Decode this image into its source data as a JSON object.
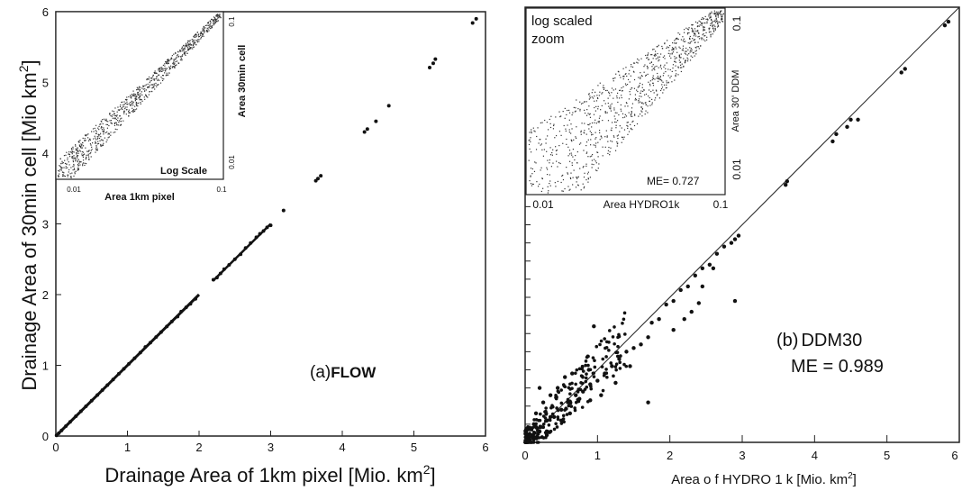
{
  "chart_data": [
    {
      "type": "scatter",
      "xlabel": "Drainage Area of 1km pixel [Mio. km",
      "xlabel_sup": "2",
      "xlabel_end": "]",
      "ylabel": "Drainage Area of 30min cell [Mio km",
      "ylabel_sup": "2",
      "ylabel_end": "]",
      "xlim": [
        0,
        6
      ],
      "ylim": [
        0,
        6
      ],
      "xticks": [
        "0",
        "1",
        "2",
        "3",
        "4",
        "5",
        "6"
      ],
      "yticks": [
        "0",
        "1",
        "2",
        "3",
        "4",
        "5",
        "6"
      ],
      "panel_label": "(a)",
      "panel_name": "FLOW",
      "points": [
        [
          5.87,
          5.9
        ],
        [
          5.82,
          5.84
        ],
        [
          5.3,
          5.33
        ],
        [
          5.27,
          5.27
        ],
        [
          5.22,
          5.21
        ],
        [
          4.65,
          4.67
        ],
        [
          4.47,
          4.45
        ],
        [
          4.35,
          4.34
        ],
        [
          4.31,
          4.3
        ],
        [
          3.7,
          3.68
        ],
        [
          3.66,
          3.64
        ],
        [
          3.63,
          3.61
        ],
        [
          3.18,
          3.19
        ],
        [
          3.0,
          2.98
        ],
        [
          2.95,
          2.95
        ],
        [
          2.9,
          2.9
        ],
        [
          2.85,
          2.86
        ],
        [
          2.8,
          2.81
        ],
        [
          2.72,
          2.73
        ],
        [
          2.65,
          2.66
        ],
        [
          2.58,
          2.57
        ],
        [
          2.5,
          2.5
        ],
        [
          2.42,
          2.42
        ],
        [
          2.35,
          2.36
        ],
        [
          2.3,
          2.3
        ],
        [
          2.25,
          2.24
        ],
        [
          2.2,
          2.21
        ],
        [
          1.95,
          1.94
        ],
        [
          1.88,
          1.87
        ],
        [
          1.82,
          1.82
        ],
        [
          1.75,
          1.76
        ],
        [
          1.7,
          1.69
        ],
        [
          1.62,
          1.62
        ],
        [
          1.55,
          1.55
        ],
        [
          1.47,
          1.47
        ],
        [
          1.4,
          1.4
        ],
        [
          1.32,
          1.32
        ],
        [
          1.25,
          1.26
        ],
        [
          1.18,
          1.18
        ],
        [
          1.1,
          1.1
        ],
        [
          1.02,
          1.02
        ],
        [
          0.95,
          0.95
        ],
        [
          0.88,
          0.88
        ],
        [
          0.8,
          0.8
        ],
        [
          0.72,
          0.72
        ],
        [
          0.65,
          0.65
        ],
        [
          0.58,
          0.58
        ],
        [
          0.5,
          0.5
        ],
        [
          0.42,
          0.42
        ],
        [
          0.35,
          0.35
        ],
        [
          0.28,
          0.28
        ],
        [
          0.2,
          0.2
        ],
        [
          0.14,
          0.14
        ],
        [
          0.08,
          0.08
        ],
        [
          0.04,
          0.04
        ],
        [
          0.01,
          0.01
        ]
      ],
      "inset": {
        "xlabel": "Area 1km pixel",
        "ylabel": "Area 30min cell",
        "label": "Log Scale",
        "xticks": [
          "0.01",
          "0.1"
        ],
        "yticks": [
          "0.01",
          "0.1"
        ],
        "scale": "log"
      }
    },
    {
      "type": "scatter",
      "xlabel": "Area  o f   HYDRO  1 k     [Mio. km",
      "xlabel_sup": "2",
      "xlabel_end": "]",
      "xlim": [
        0,
        6
      ],
      "ylim": [
        0,
        6
      ],
      "xticks": [
        "0",
        "1",
        "2",
        "3",
        "4",
        "5",
        "6"
      ],
      "panel_label": "(b)",
      "panel_name": "DDM30",
      "metric": "ME =  0.989",
      "points": [
        [
          5.85,
          5.8
        ],
        [
          5.8,
          5.75
        ],
        [
          5.25,
          5.15
        ],
        [
          5.2,
          5.1
        ],
        [
          4.5,
          4.45
        ],
        [
          4.45,
          4.35
        ],
        [
          4.6,
          4.45
        ],
        [
          4.3,
          4.25
        ],
        [
          4.25,
          4.15
        ],
        [
          3.62,
          3.6
        ],
        [
          3.6,
          3.55
        ],
        [
          2.95,
          2.85
        ],
        [
          2.9,
          2.8
        ],
        [
          2.85,
          2.75
        ],
        [
          2.75,
          2.7
        ],
        [
          2.65,
          2.6
        ],
        [
          2.55,
          2.45
        ],
        [
          2.45,
          2.4
        ],
        [
          2.35,
          2.3
        ],
        [
          2.25,
          2.15
        ],
        [
          2.15,
          2.1
        ],
        [
          2.05,
          1.95
        ],
        [
          1.95,
          1.9
        ],
        [
          1.85,
          1.7
        ],
        [
          1.75,
          1.65
        ],
        [
          1.7,
          1.45
        ],
        [
          1.6,
          1.35
        ],
        [
          1.5,
          1.3
        ],
        [
          1.4,
          1.25
        ],
        [
          1.3,
          1.15
        ],
        [
          1.2,
          1.05
        ],
        [
          1.1,
          0.95
        ],
        [
          1.0,
          0.85
        ],
        [
          0.9,
          0.8
        ],
        [
          0.8,
          0.7
        ],
        [
          0.7,
          0.65
        ],
        [
          0.6,
          0.55
        ],
        [
          0.5,
          0.45
        ],
        [
          0.4,
          0.35
        ],
        [
          0.3,
          0.3
        ],
        [
          0.2,
          0.15
        ],
        [
          0.1,
          0.1
        ],
        [
          0.05,
          0.05
        ],
        [
          0.88,
          1.0
        ],
        [
          0.75,
          0.6
        ],
        [
          0.9,
          0.58
        ],
        [
          1.05,
          0.65
        ],
        [
          0.55,
          0.9
        ],
        [
          0.65,
          0.95
        ],
        [
          0.45,
          0.75
        ],
        [
          0.35,
          0.65
        ],
        [
          0.25,
          0.55
        ],
        [
          0.15,
          0.4
        ],
        [
          0.2,
          0.75
        ],
        [
          0.35,
          0.35
        ],
        [
          0.5,
          0.3
        ],
        [
          0.62,
          0.4
        ],
        [
          1.7,
          0.55
        ],
        [
          2.05,
          1.55
        ],
        [
          2.2,
          1.7
        ],
        [
          2.3,
          1.8
        ],
        [
          2.9,
          1.95
        ],
        [
          2.45,
          2.15
        ],
        [
          2.6,
          2.4
        ],
        [
          0.95,
          1.6
        ],
        [
          1.25,
          0.82
        ],
        [
          1.45,
          1.05
        ],
        [
          2.4,
          1.92
        ],
        [
          0.3,
          0.1
        ],
        [
          0.12,
          0.25
        ],
        [
          0.08,
          0.18
        ]
      ],
      "inset": {
        "label": "log scaled\nzoom",
        "label_line1": "log scaled",
        "label_line2": "zoom",
        "xlabel": "Area   HYDRO1k",
        "ylabel": "Area 30' DDM",
        "metric": "ME=  0.727",
        "xticks": [
          "0.01",
          "0.1"
        ],
        "yticks": [
          "0.01",
          "0.1"
        ],
        "scale": "log"
      }
    }
  ]
}
